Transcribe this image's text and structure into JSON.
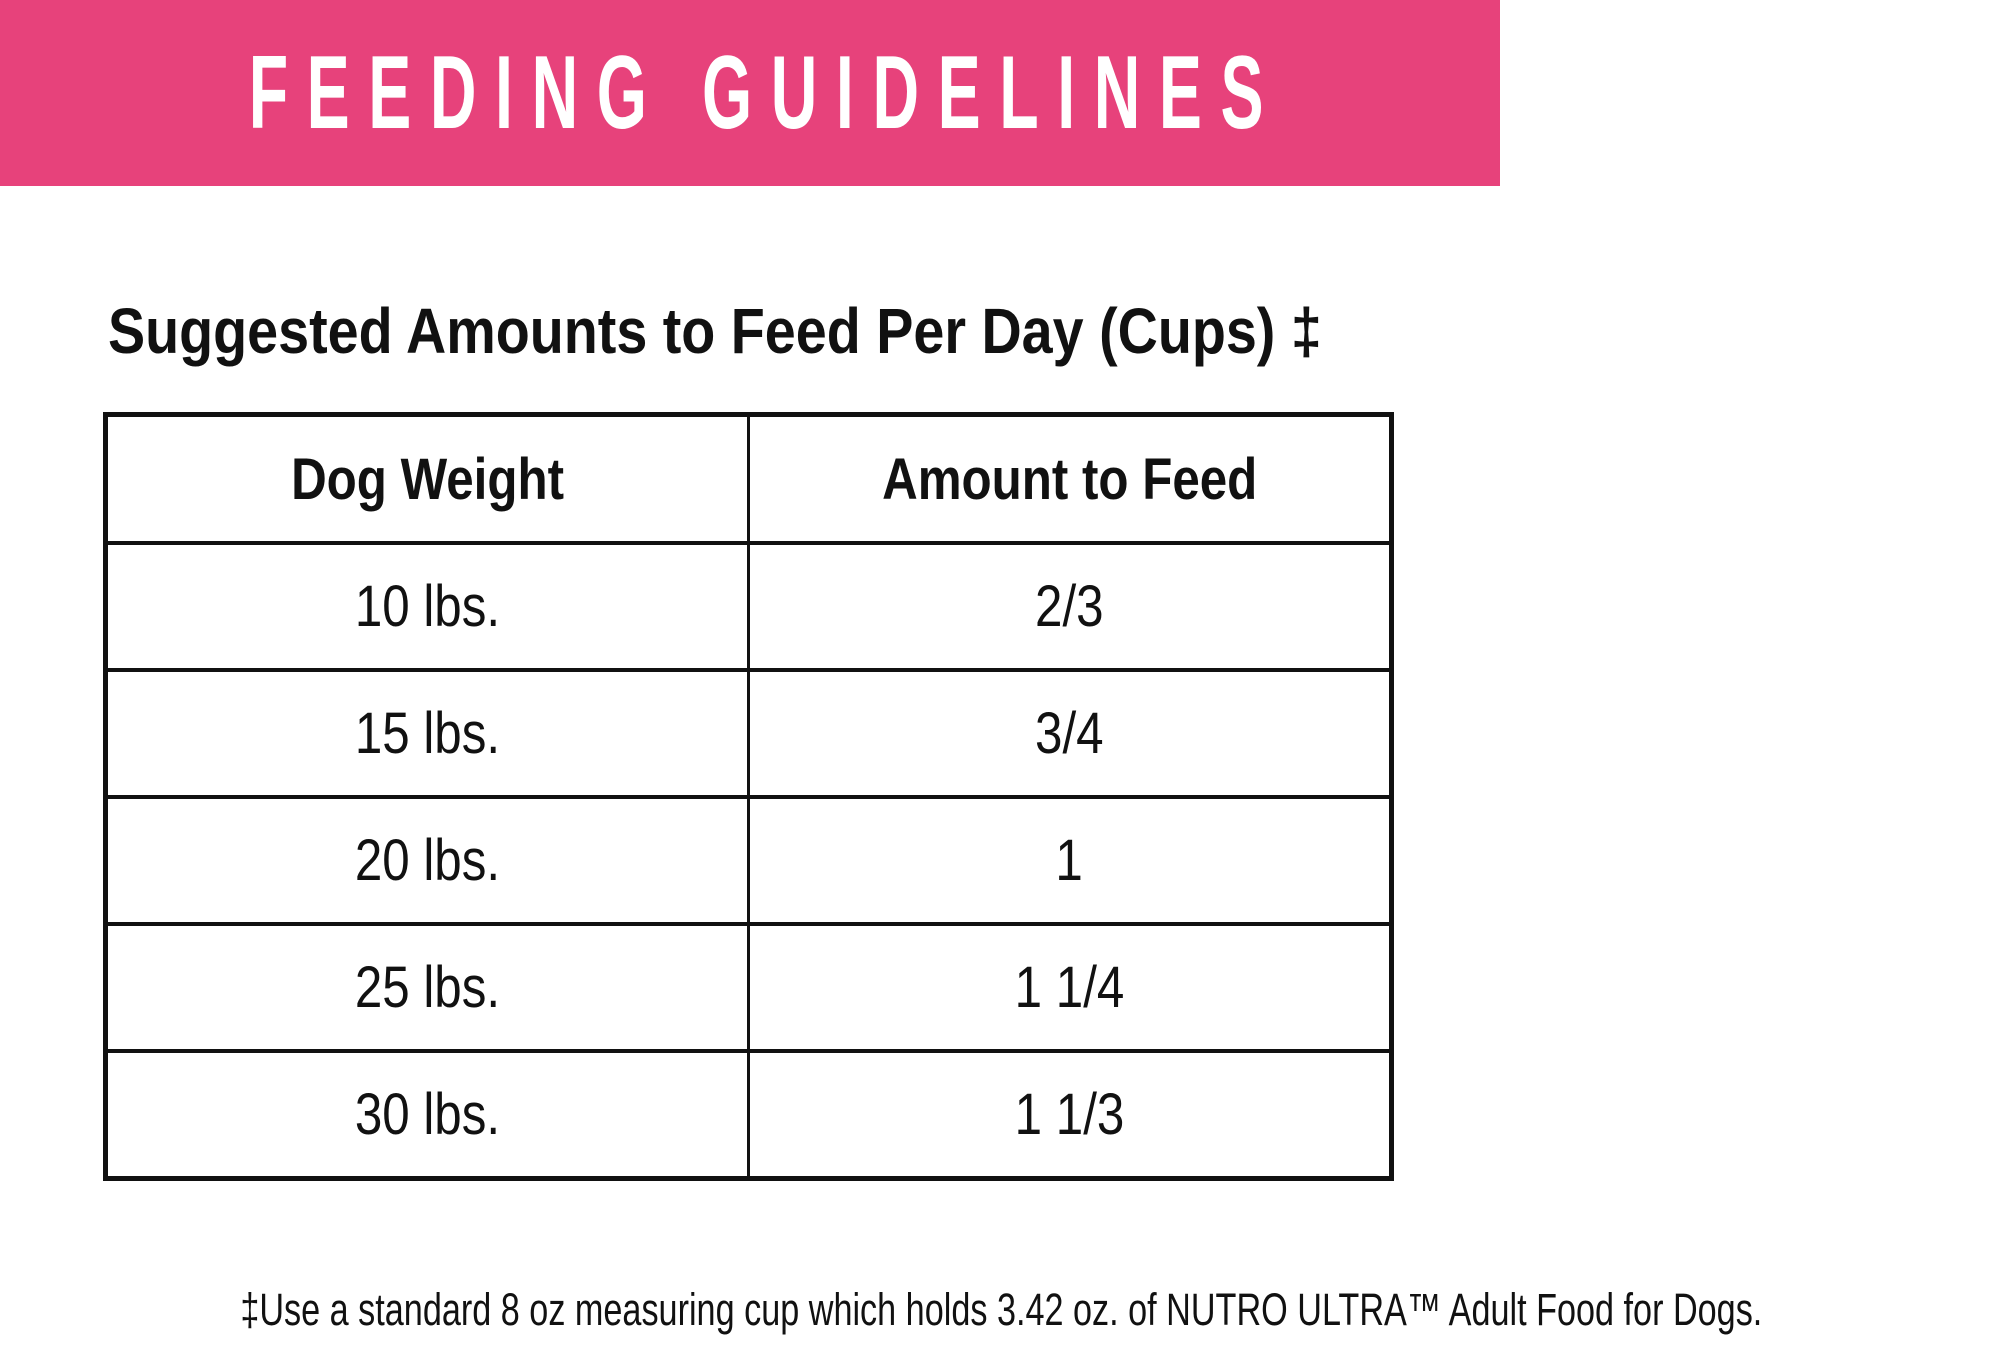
{
  "banner": {
    "title": "FEEDING GUIDELINES"
  },
  "section": {
    "title": "Suggested Amounts to Feed Per Day (Cups) ‡"
  },
  "chart_data": {
    "type": "table",
    "title": "Suggested Amounts to Feed Per Day (Cups)",
    "columns": [
      "Dog Weight",
      "Amount to Feed"
    ],
    "rows": [
      [
        "10 lbs.",
        "2/3"
      ],
      [
        "15 lbs.",
        "3/4"
      ],
      [
        "20 lbs.",
        "1"
      ],
      [
        "25 lbs.",
        "1 1/4"
      ],
      [
        "30 lbs.",
        "1 1/3"
      ]
    ]
  },
  "footnote": "‡Use a standard 8 oz measuring cup which holds 3.42 oz. of NUTRO ULTRA™ Adult Food for Dogs.",
  "colors": {
    "banner_bg": "#E7427B",
    "banner_text": "#FFFFFF",
    "text": "#111111",
    "table_border": "#111111"
  }
}
